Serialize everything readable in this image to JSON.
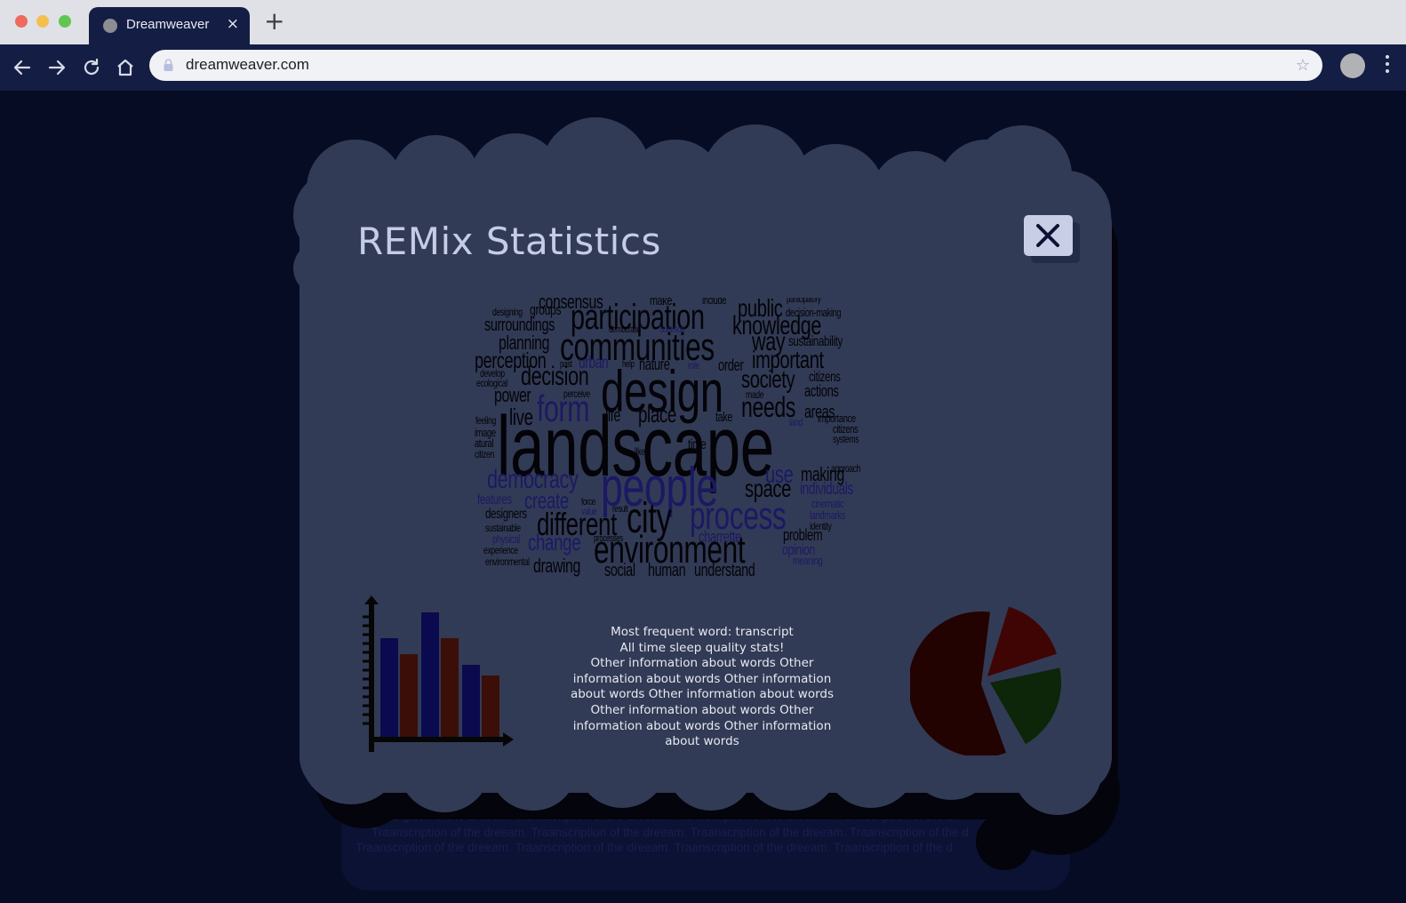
{
  "browser": {
    "tab_title": "Dreamweaver",
    "tab_close": "×",
    "new_tab": "+",
    "url": "dreamweaver.com",
    "star": "☆"
  },
  "background": {
    "lines": [
      "Tranascription of the dreeam. Tranascription of the dreeam. Tranascription of the dreeam. Tranascription of the dr",
      "Traanscription of the dreeam. Traanscription of the dreeam. Traanscription of the dreeam. Traanscription of the d",
      "Traanscription of the dreeam. Traanscription of the dreeam. Traanscription of the dreeam. Traanscription of the d"
    ]
  },
  "modal": {
    "title": "REMix Statistics",
    "close_label": "Close",
    "stats_lines": [
      "Most frequent word: transcript",
      "All time sleep quality stats!",
      "Other information about words Other",
      "information about words Other information",
      "about words Other information about words",
      "Other information about words Other",
      "information about words Other information",
      "about words"
    ]
  },
  "colors": {
    "bar_primary": "#0b0a4f",
    "bar_secondary": "#3b0f07",
    "pie_a": "#230202",
    "pie_b": "#3f0505",
    "pie_c": "#0d2508",
    "cloud": "#323b55"
  },
  "wordcloud": {
    "words": [
      {
        "t": "consensus",
        "s": 22,
        "c": "b"
      },
      {
        "t": "make",
        "s": 15,
        "c": "b"
      },
      {
        "t": "include",
        "s": 13,
        "c": "b"
      },
      {
        "t": "participatory",
        "s": 11,
        "c": "b"
      },
      {
        "t": "designing",
        "s": 12,
        "c": "b"
      },
      {
        "t": "groups",
        "s": 17,
        "c": "b"
      },
      {
        "t": "participation",
        "s": 40,
        "c": "b"
      },
      {
        "t": "public",
        "s": 28,
        "c": "b"
      },
      {
        "t": "decision-making",
        "s": 13,
        "c": "b"
      },
      {
        "t": "surroundings",
        "s": 20,
        "c": "b"
      },
      {
        "t": "democratic",
        "s": 11,
        "c": "b"
      },
      {
        "t": "common",
        "s": 11,
        "c": "u"
      },
      {
        "t": "knowledge",
        "s": 30,
        "c": "b"
      },
      {
        "t": "communities",
        "s": 44,
        "c": "b"
      },
      {
        "t": "planning",
        "s": 22,
        "c": "b"
      },
      {
        "t": "way",
        "s": 30,
        "c": "b"
      },
      {
        "t": "sustainability",
        "s": 16,
        "c": "b"
      },
      {
        "t": "perception",
        "s": 25,
        "c": "b"
      },
      {
        "t": "past",
        "s": 11,
        "c": "b"
      },
      {
        "t": "urban",
        "s": 19,
        "c": "u"
      },
      {
        "t": "help",
        "s": 11,
        "c": "b"
      },
      {
        "t": "nature",
        "s": 18,
        "c": "b"
      },
      {
        "t": "role",
        "s": 12,
        "c": "u"
      },
      {
        "t": "order",
        "s": 18,
        "c": "b"
      },
      {
        "t": "important",
        "s": 28,
        "c": "b"
      },
      {
        "t": "develop",
        "s": 12,
        "c": "b"
      },
      {
        "t": "ecological",
        "s": 12,
        "c": "b"
      },
      {
        "t": "decision",
        "s": 30,
        "c": "b"
      },
      {
        "t": "design",
        "s": 66,
        "c": "b"
      },
      {
        "t": "society",
        "s": 28,
        "c": "b"
      },
      {
        "t": "citizens",
        "s": 16,
        "c": "b"
      },
      {
        "t": "power",
        "s": 22,
        "c": "b"
      },
      {
        "t": "perceive",
        "s": 12,
        "c": "b"
      },
      {
        "t": "made",
        "s": 12,
        "c": "b"
      },
      {
        "t": "actions",
        "s": 18,
        "c": "b"
      },
      {
        "t": "form",
        "s": 42,
        "c": "u"
      },
      {
        "t": "needs",
        "s": 32,
        "c": "b"
      },
      {
        "t": "areas",
        "s": 20,
        "c": "b"
      },
      {
        "t": "live",
        "s": 26,
        "c": "b"
      },
      {
        "t": "life",
        "s": 20,
        "c": "b"
      },
      {
        "t": "place",
        "s": 26,
        "c": "b"
      },
      {
        "t": "take",
        "s": 15,
        "c": "b"
      },
      {
        "t": "land",
        "s": 12,
        "c": "u"
      },
      {
        "t": "importance",
        "s": 13,
        "c": "b"
      },
      {
        "t": "feeling",
        "s": 12,
        "c": "b"
      },
      {
        "t": "citizens",
        "s": 13,
        "c": "b"
      },
      {
        "t": "image",
        "s": 13,
        "c": "b"
      },
      {
        "t": "landscape",
        "s": 96,
        "c": "b"
      },
      {
        "t": "systems",
        "s": 12,
        "c": "b"
      },
      {
        "t": "natural",
        "s": 13,
        "c": "b"
      },
      {
        "t": "time",
        "s": 16,
        "c": "b"
      },
      {
        "t": "citizen",
        "s": 12,
        "c": "b"
      },
      {
        "t": "like",
        "s": 12,
        "c": "b"
      },
      {
        "t": "approach",
        "s": 12,
        "c": "b"
      },
      {
        "t": "democracy",
        "s": 30,
        "c": "u"
      },
      {
        "t": "people",
        "s": 62,
        "c": "u"
      },
      {
        "t": "use",
        "s": 28,
        "c": "u"
      },
      {
        "t": "making",
        "s": 22,
        "c": "b"
      },
      {
        "t": "space",
        "s": 28,
        "c": "b"
      },
      {
        "t": "individuals",
        "s": 19,
        "c": "u"
      },
      {
        "t": "features",
        "s": 16,
        "c": "u"
      },
      {
        "t": "create",
        "s": 26,
        "c": "u"
      },
      {
        "t": "force",
        "s": 11,
        "c": "b"
      },
      {
        "t": "cinematic",
        "s": 13,
        "c": "u"
      },
      {
        "t": "designers",
        "s": 16,
        "c": "b"
      },
      {
        "t": "value",
        "s": 11,
        "c": "u"
      },
      {
        "t": "result",
        "s": 11,
        "c": "b"
      },
      {
        "t": "landmarks",
        "s": 13,
        "c": "u"
      },
      {
        "t": "city",
        "s": 48,
        "c": "b"
      },
      {
        "t": "process",
        "s": 44,
        "c": "u"
      },
      {
        "t": "identity",
        "s": 12,
        "c": "b"
      },
      {
        "t": "sustainable",
        "s": 12,
        "c": "b"
      },
      {
        "t": "different",
        "s": 36,
        "c": "b"
      },
      {
        "t": "physical",
        "s": 13,
        "c": "u"
      },
      {
        "t": "charrette",
        "s": 18,
        "c": "u"
      },
      {
        "t": "problem",
        "s": 18,
        "c": "b"
      },
      {
        "t": "change",
        "s": 26,
        "c": "u"
      },
      {
        "t": "processes",
        "s": 11,
        "c": "b"
      },
      {
        "t": "experience",
        "s": 12,
        "c": "b"
      },
      {
        "t": "environment",
        "s": 44,
        "c": "b"
      },
      {
        "t": "opinion",
        "s": 17,
        "c": "u"
      },
      {
        "t": "environmental",
        "s": 12,
        "c": "b"
      },
      {
        "t": "meaning",
        "s": 13,
        "c": "u"
      },
      {
        "t": "drawing",
        "s": 22,
        "c": "b"
      },
      {
        "t": "social",
        "s": 20,
        "c": "b"
      },
      {
        "t": "human",
        "s": 20,
        "c": "b"
      },
      {
        "t": "understand",
        "s": 20,
        "c": "b"
      }
    ]
  }
}
